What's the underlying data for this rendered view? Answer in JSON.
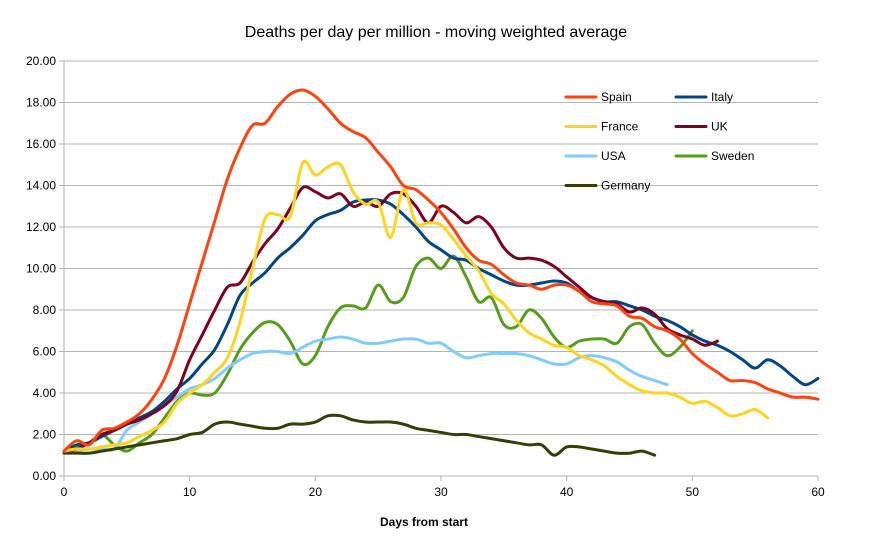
{
  "chart_data": {
    "type": "line",
    "title": "Deaths per day per million - moving weighted average",
    "xlabel": "Days from start",
    "ylabel": "",
    "xlim": [
      0,
      60
    ],
    "ylim": [
      0,
      20
    ],
    "x_ticks": [
      "0",
      "10",
      "20",
      "30",
      "40",
      "50",
      "60"
    ],
    "y_ticks": [
      "0.00",
      "2.00",
      "4.00",
      "6.00",
      "8.00",
      "10.00",
      "12.00",
      "14.00",
      "16.00",
      "18.00",
      "20.00"
    ],
    "grid": "horizontal",
    "legend_position": "top-right",
    "series": [
      {
        "name": "Spain",
        "color": "#ff420e",
        "x": [
          0,
          1,
          2,
          3,
          4,
          5,
          6,
          7,
          8,
          9,
          10,
          11,
          12,
          13,
          14,
          15,
          16,
          17,
          18,
          19,
          20,
          21,
          22,
          23,
          24,
          25,
          26,
          27,
          28,
          29,
          30,
          31,
          32,
          33,
          34,
          35,
          36,
          37,
          38,
          39,
          40,
          41,
          42,
          43,
          44,
          45,
          46,
          47,
          48,
          49,
          50,
          51,
          52,
          53,
          54,
          55,
          56,
          57,
          58,
          59,
          60
        ],
        "y": [
          1.2,
          1.7,
          1.5,
          2.2,
          2.3,
          2.6,
          3.0,
          3.7,
          4.7,
          6.3,
          8.3,
          10.3,
          12.3,
          14.3,
          15.8,
          16.9,
          17.0,
          17.8,
          18.4,
          18.6,
          18.3,
          17.7,
          17.0,
          16.6,
          16.3,
          15.6,
          14.9,
          14.0,
          13.8,
          13.3,
          12.7,
          11.9,
          11.0,
          10.4,
          10.2,
          9.7,
          9.3,
          9.2,
          9.0,
          9.2,
          9.2,
          8.9,
          8.4,
          8.3,
          8.2,
          7.7,
          7.6,
          7.2,
          7.0,
          6.6,
          5.9,
          5.4,
          5.0,
          4.6,
          4.6,
          4.5,
          4.2,
          4.0,
          3.8,
          3.8,
          3.7
        ]
      },
      {
        "name": "France",
        "color": "#ffd320",
        "x": [
          0,
          1,
          2,
          3,
          4,
          5,
          6,
          7,
          8,
          9,
          10,
          11,
          12,
          13,
          14,
          15,
          16,
          17,
          18,
          19,
          20,
          21,
          22,
          23,
          24,
          25,
          26,
          27,
          28,
          29,
          30,
          31,
          32,
          33,
          34,
          35,
          36,
          37,
          38,
          39,
          40,
          41,
          42,
          43,
          44,
          45,
          46,
          47,
          48,
          49,
          50,
          51,
          52,
          53,
          54,
          55,
          56
        ],
        "y": [
          1.2,
          1.3,
          1.3,
          1.4,
          1.5,
          1.6,
          1.9,
          2.2,
          2.6,
          3.5,
          4.0,
          4.4,
          5.0,
          5.7,
          7.4,
          10.0,
          12.4,
          12.6,
          12.5,
          15.1,
          14.5,
          14.9,
          15.0,
          13.7,
          13.1,
          13.2,
          11.5,
          13.8,
          12.2,
          12.2,
          12.1,
          11.4,
          10.6,
          9.9,
          8.8,
          8.3,
          7.5,
          6.9,
          6.6,
          6.3,
          6.2,
          5.8,
          5.6,
          5.3,
          4.8,
          4.4,
          4.1,
          4.0,
          4.0,
          3.8,
          3.5,
          3.6,
          3.3,
          2.9,
          3.0,
          3.2,
          2.8
        ]
      },
      {
        "name": "USA",
        "color": "#83caff",
        "x": [
          0,
          1,
          2,
          3,
          4,
          5,
          6,
          7,
          8,
          9,
          10,
          11,
          12,
          13,
          14,
          15,
          16,
          17,
          18,
          19,
          20,
          21,
          22,
          23,
          24,
          25,
          26,
          27,
          28,
          29,
          30,
          31,
          32,
          33,
          34,
          35,
          36,
          37,
          38,
          39,
          40,
          41,
          42,
          43,
          44,
          45,
          46,
          47,
          48
        ],
        "y": [
          1.2,
          1.2,
          1.3,
          1.3,
          1.3,
          2.2,
          2.6,
          3.0,
          3.4,
          3.8,
          4.2,
          4.4,
          4.7,
          5.2,
          5.6,
          5.9,
          6.0,
          6.0,
          5.9,
          6.2,
          6.5,
          6.6,
          6.7,
          6.6,
          6.4,
          6.4,
          6.5,
          6.6,
          6.6,
          6.4,
          6.4,
          6.0,
          5.7,
          5.8,
          5.9,
          5.9,
          5.9,
          5.8,
          5.6,
          5.4,
          5.4,
          5.7,
          5.8,
          5.7,
          5.5,
          5.1,
          4.8,
          4.6,
          4.4
        ]
      },
      {
        "name": "Germany",
        "color": "#314004",
        "x": [
          0,
          1,
          2,
          3,
          4,
          5,
          6,
          7,
          8,
          9,
          10,
          11,
          12,
          13,
          14,
          15,
          16,
          17,
          18,
          19,
          20,
          21,
          22,
          23,
          24,
          25,
          26,
          27,
          28,
          29,
          30,
          31,
          32,
          33,
          34,
          35,
          36,
          37,
          38,
          39,
          40,
          41,
          42,
          43,
          44,
          45,
          46,
          47
        ],
        "y": [
          1.1,
          1.1,
          1.1,
          1.2,
          1.3,
          1.4,
          1.5,
          1.6,
          1.7,
          1.8,
          2.0,
          2.1,
          2.5,
          2.6,
          2.5,
          2.4,
          2.3,
          2.3,
          2.5,
          2.5,
          2.6,
          2.9,
          2.9,
          2.7,
          2.6,
          2.6,
          2.6,
          2.5,
          2.3,
          2.2,
          2.1,
          2.0,
          2.0,
          1.9,
          1.8,
          1.7,
          1.6,
          1.5,
          1.5,
          1.0,
          1.4,
          1.4,
          1.3,
          1.2,
          1.1,
          1.1,
          1.2,
          1.0
        ]
      },
      {
        "name": "Italy",
        "color": "#004586",
        "x": [
          0,
          1,
          2,
          3,
          4,
          5,
          6,
          7,
          8,
          9,
          10,
          11,
          12,
          13,
          14,
          15,
          16,
          17,
          18,
          19,
          20,
          21,
          22,
          23,
          24,
          25,
          26,
          27,
          28,
          29,
          30,
          31,
          32,
          33,
          34,
          35,
          36,
          37,
          38,
          39,
          40,
          41,
          42,
          43,
          44,
          45,
          46,
          47,
          48,
          49,
          50,
          51,
          52,
          53,
          54,
          55,
          56,
          57,
          58,
          59,
          60
        ],
        "y": [
          1.2,
          1.5,
          1.6,
          1.9,
          2.2,
          2.5,
          2.8,
          3.1,
          3.6,
          4.2,
          4.7,
          5.4,
          6.1,
          7.3,
          8.7,
          9.3,
          9.8,
          10.5,
          11.0,
          11.6,
          12.3,
          12.6,
          12.8,
          13.2,
          13.3,
          13.3,
          13.1,
          12.6,
          12.0,
          11.3,
          10.9,
          10.5,
          10.4,
          10.0,
          9.7,
          9.4,
          9.2,
          9.2,
          9.3,
          9.4,
          9.3,
          8.9,
          8.6,
          8.4,
          8.4,
          8.2,
          8.0,
          7.7,
          7.5,
          7.2,
          6.8,
          6.5,
          6.3,
          6.0,
          5.6,
          5.2,
          5.6,
          5.3,
          4.8,
          4.4,
          4.7
        ]
      },
      {
        "name": "UK",
        "color": "#7e0021",
        "x": [
          0,
          1,
          2,
          3,
          4,
          5,
          6,
          7,
          8,
          9,
          10,
          11,
          12,
          13,
          14,
          15,
          16,
          17,
          18,
          19,
          20,
          21,
          22,
          23,
          24,
          25,
          26,
          27,
          28,
          29,
          30,
          31,
          32,
          33,
          34,
          35,
          36,
          37,
          38,
          39,
          40,
          41,
          42,
          43,
          44,
          45,
          46,
          47,
          48,
          49,
          50,
          51,
          52
        ],
        "y": [
          1.2,
          1.3,
          1.6,
          2.0,
          2.2,
          2.5,
          2.7,
          3.0,
          3.4,
          4.1,
          5.6,
          6.8,
          8.0,
          9.1,
          9.3,
          10.3,
          11.2,
          11.9,
          12.9,
          13.9,
          13.7,
          13.4,
          13.6,
          13.0,
          13.2,
          13.0,
          13.6,
          13.6,
          13.0,
          12.2,
          13.0,
          12.7,
          12.2,
          12.5,
          12.0,
          11.0,
          10.5,
          10.5,
          10.4,
          10.1,
          9.6,
          9.1,
          8.6,
          8.4,
          8.3,
          7.9,
          8.1,
          7.8,
          7.1,
          6.8,
          6.6,
          6.3,
          6.5
        ]
      },
      {
        "name": "Sweden",
        "color": "#579d1c",
        "x": [
          0,
          1,
          2,
          3,
          4,
          5,
          6,
          7,
          8,
          9,
          10,
          11,
          12,
          13,
          14,
          15,
          16,
          17,
          18,
          19,
          20,
          21,
          22,
          23,
          24,
          25,
          26,
          27,
          28,
          29,
          30,
          31,
          32,
          33,
          34,
          35,
          36,
          37,
          38,
          39,
          40,
          41,
          42,
          43,
          44,
          45,
          46,
          47,
          48,
          49,
          50
        ],
        "y": [
          1.2,
          1.4,
          1.6,
          2.0,
          1.5,
          1.2,
          1.6,
          2.0,
          2.8,
          3.6,
          4.0,
          3.9,
          4.0,
          4.9,
          6.1,
          6.9,
          7.4,
          7.3,
          6.5,
          5.4,
          5.8,
          7.2,
          8.1,
          8.2,
          8.1,
          9.2,
          8.4,
          8.6,
          10.1,
          10.5,
          10.0,
          10.6,
          9.6,
          8.4,
          8.6,
          7.3,
          7.2,
          8.0,
          7.6,
          6.7,
          6.2,
          6.5,
          6.6,
          6.6,
          6.4,
          7.2,
          7.3,
          6.4,
          5.8,
          6.2,
          7.0
        ]
      }
    ],
    "legend": [
      {
        "name": "Spain",
        "color": "#ff420e"
      },
      {
        "name": "Italy",
        "color": "#004586"
      },
      {
        "name": "France",
        "color": "#ffd320"
      },
      {
        "name": "UK",
        "color": "#7e0021"
      },
      {
        "name": "USA",
        "color": "#83caff"
      },
      {
        "name": "Sweden",
        "color": "#579d1c"
      },
      {
        "name": "Germany",
        "color": "#314004"
      }
    ]
  }
}
